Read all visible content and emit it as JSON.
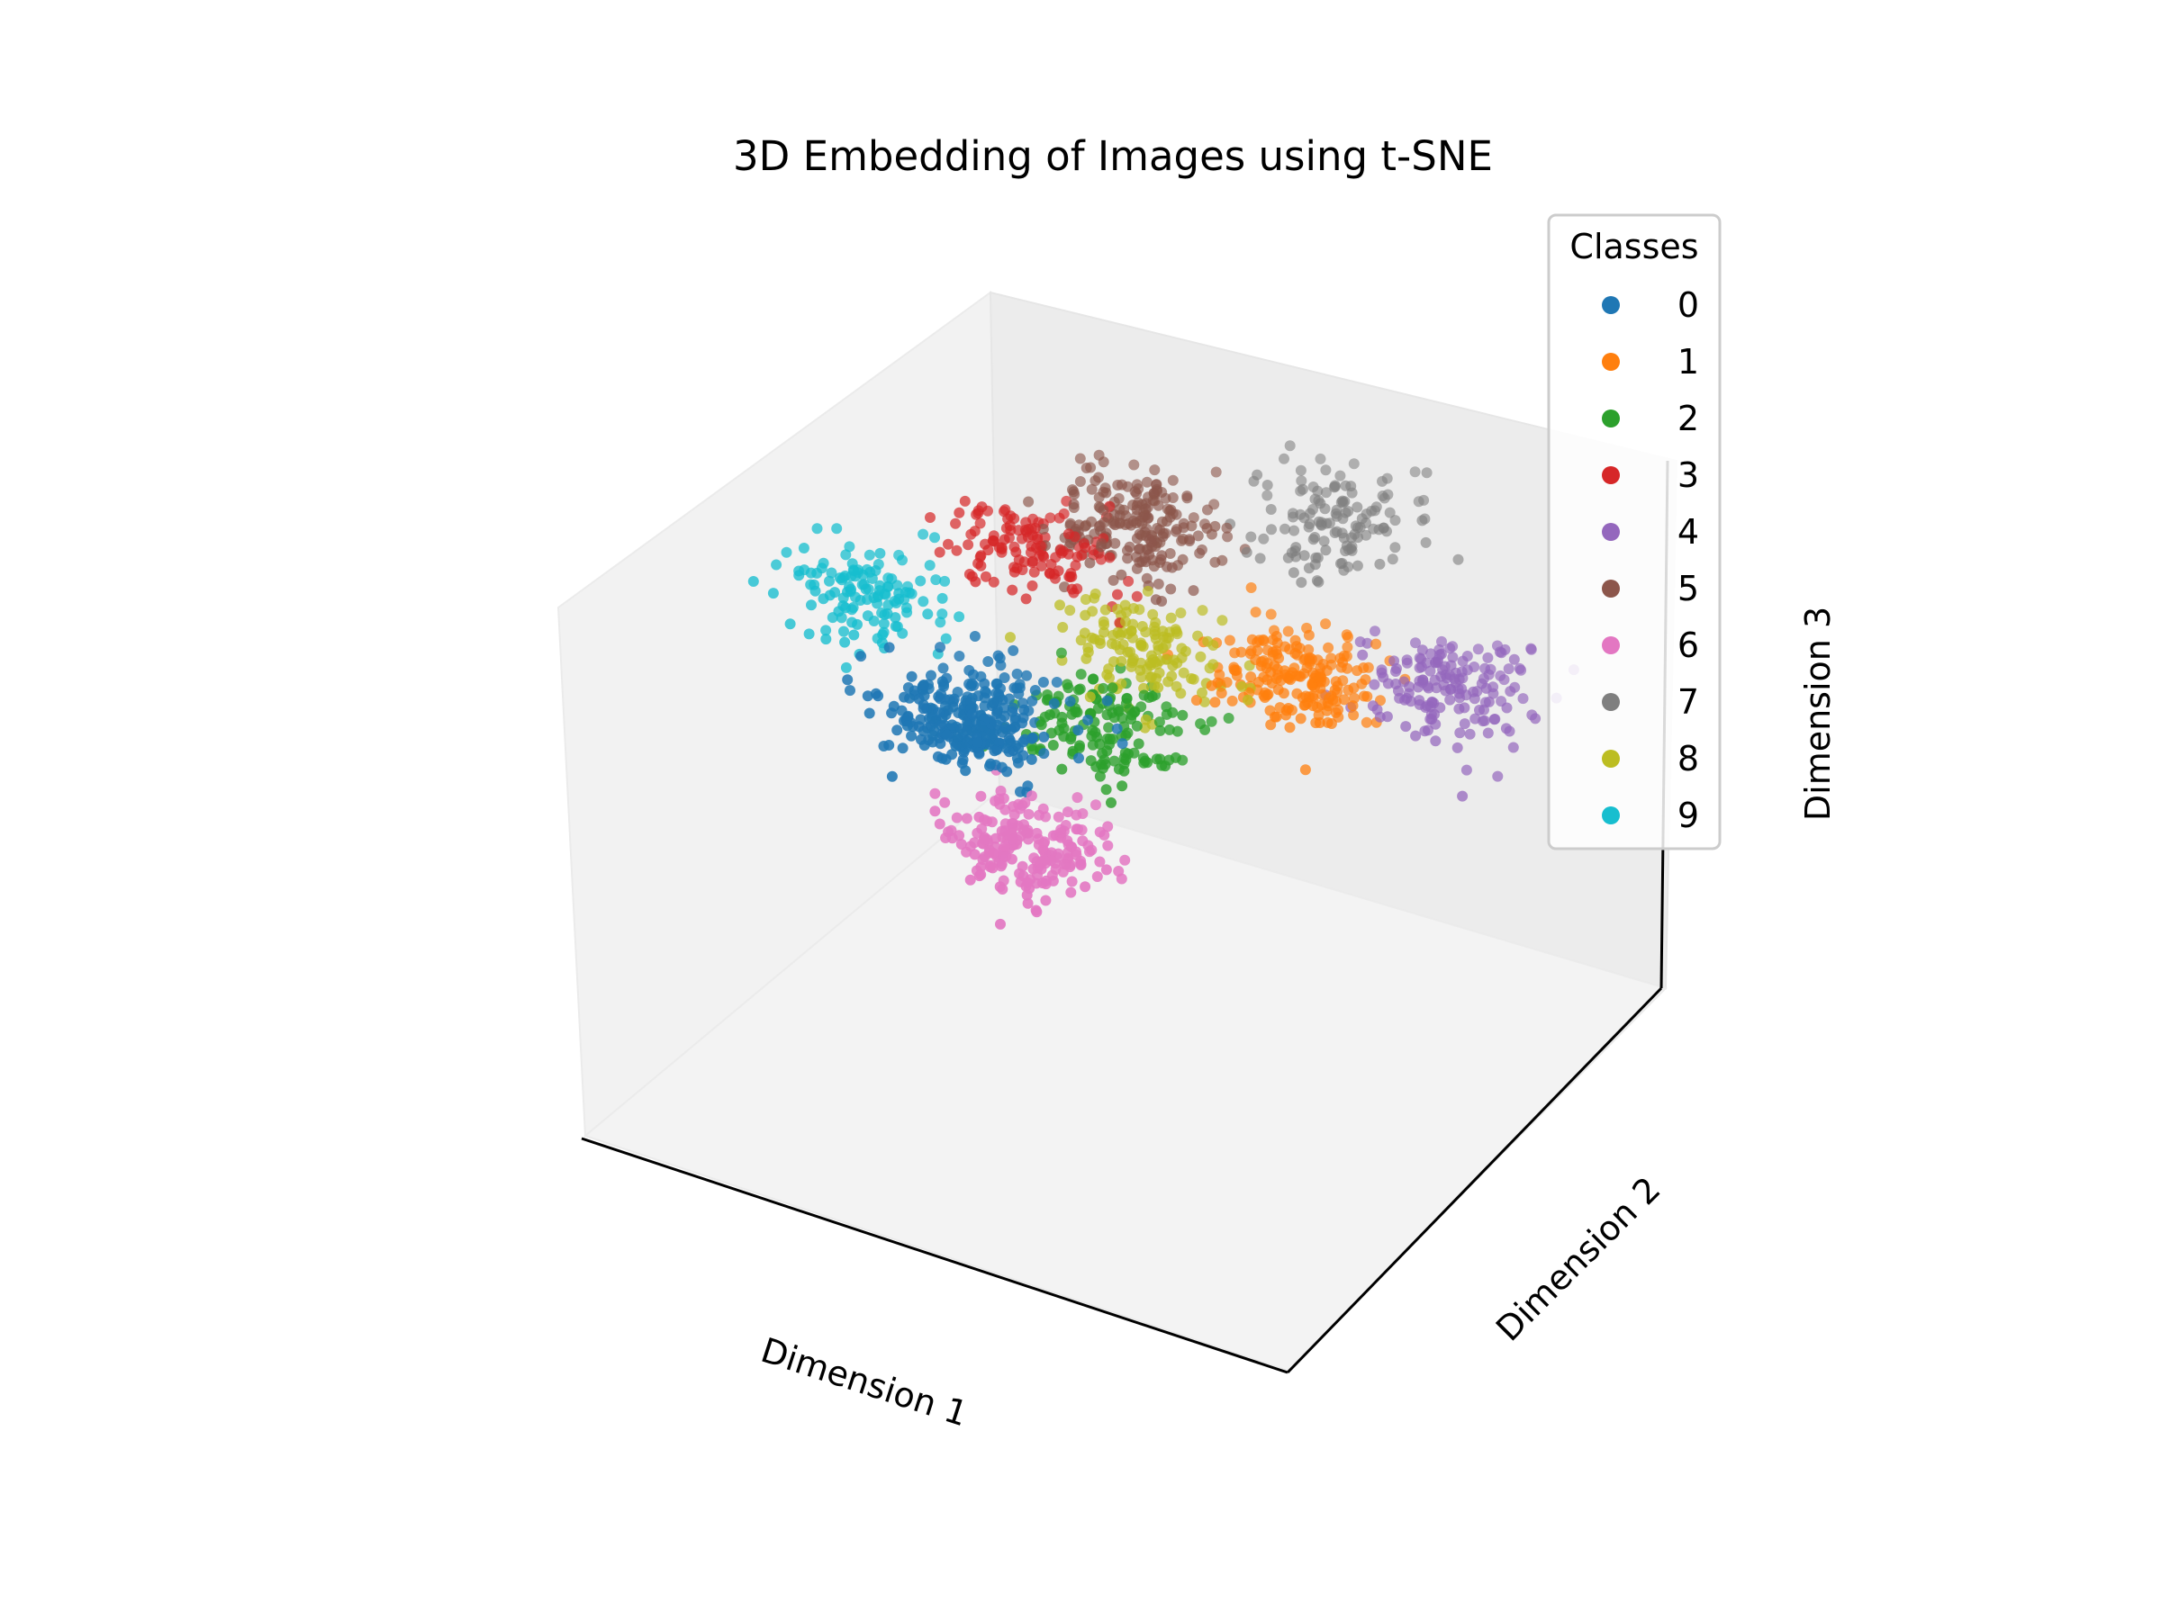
{
  "chart_data": {
    "type": "scatter",
    "dimensions": 3,
    "title": "3D Embedding of Images using t-SNE",
    "xlabel": "Dimension 1",
    "ylabel": "Dimension 2",
    "zlabel": "Dimension 3",
    "ticks_shown": false,
    "grid": false,
    "legend": {
      "title": "Classes",
      "placement": "upper-right"
    },
    "series": [
      {
        "name": "0",
        "color": "#1f77b4",
        "points": 300,
        "cluster_center": [
          -0.2,
          -0.45,
          0.55
        ]
      },
      {
        "name": "1",
        "color": "#ff7f0e",
        "points": 200,
        "cluster_center": [
          0.38,
          0.18,
          0.5
        ]
      },
      {
        "name": "2",
        "color": "#2ca02c",
        "points": 150,
        "cluster_center": [
          0.05,
          -0.2,
          0.45
        ]
      },
      {
        "name": "3",
        "color": "#d62728",
        "points": 130,
        "cluster_center": [
          -0.4,
          0.25,
          0.6
        ]
      },
      {
        "name": "4",
        "color": "#9467bd",
        "points": 160,
        "cluster_center": [
          0.75,
          0.3,
          0.55
        ]
      },
      {
        "name": "5",
        "color": "#8c564b",
        "points": 210,
        "cluster_center": [
          -0.2,
          0.45,
          0.62
        ]
      },
      {
        "name": "6",
        "color": "#e377c2",
        "points": 200,
        "cluster_center": [
          0.05,
          -0.62,
          0.3
        ]
      },
      {
        "name": "7",
        "color": "#7f7f7f",
        "points": 130,
        "cluster_center": [
          0.22,
          0.72,
          0.62
        ]
      },
      {
        "name": "8",
        "color": "#bcbd22",
        "points": 140,
        "cluster_center": [
          0.02,
          0.08,
          0.52
        ]
      },
      {
        "name": "9",
        "color": "#17becf",
        "points": 130,
        "cluster_center": [
          -0.7,
          -0.05,
          0.5
        ]
      }
    ]
  }
}
